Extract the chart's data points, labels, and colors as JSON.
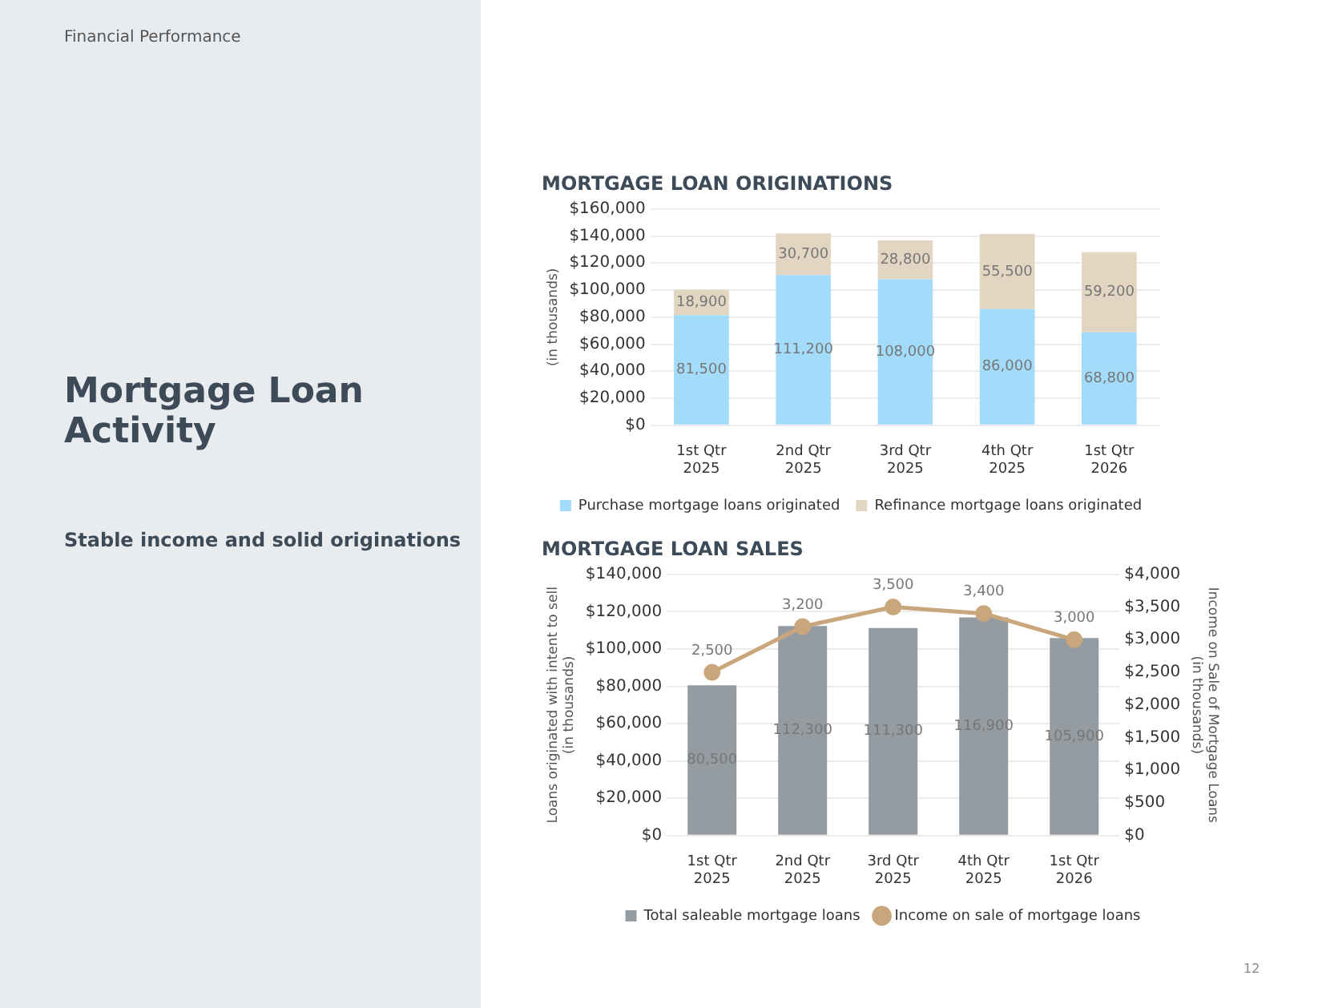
{
  "chart_data": [
    {
      "type": "bar",
      "title": "MORTGAGE LOAN ORIGINATIONS",
      "ylabel": "(in thousands)",
      "annotations": [
        "Financial Performance",
        "Mortgage Loan Activity",
        "Stable income and solid originations"
      ],
      "categories": [
        "1st Qtr\n2025",
        "2nd Qtr\n2025",
        "3rd Qtr\n2025",
        "4th Qtr\n2025",
        "1st Qtr\n2026"
      ],
      "series": [
        {
          "name": "Purchase mortgage loans originated",
          "color": "#a3dcfa",
          "values": [
            81500,
            111200,
            108000,
            86000,
            68800
          ],
          "value_labels": [
            "81,500",
            "111,200",
            "108,000",
            "86,000",
            "68,800"
          ]
        },
        {
          "name": "Refinance mortgage loans originated",
          "color": "#e2d5c2",
          "values": [
            18900,
            30700,
            28800,
            55500,
            59200
          ],
          "value_labels": [
            "18,900",
            "30,700",
            "28,800",
            "55,500",
            "59,200"
          ]
        }
      ],
      "stacked": true,
      "legend": "bottom",
      "grid": "y",
      "ylim": [
        0,
        160000
      ],
      "yticks": [
        {
          "value": 0,
          "label": "$0"
        },
        {
          "value": 20000,
          "label": "$20,000"
        },
        {
          "value": 40000,
          "label": "$40,000"
        },
        {
          "value": 60000,
          "label": "$60,000"
        },
        {
          "value": 80000,
          "label": "$80,000"
        },
        {
          "value": 100000,
          "label": "$100,000"
        },
        {
          "value": 120000,
          "label": "$120,000"
        },
        {
          "value": 140000,
          "label": "$140,000"
        },
        {
          "value": 160000,
          "label": "$160,000"
        }
      ]
    },
    {
      "type": "bar",
      "title": "MORTGAGE LOAN SALES",
      "ylabel": "Loans originated with intent to sell\n(in thousands)",
      "y2label": "Income on Sale of Mortgage Loans\n(in thousands)",
      "annotations": [
        "12"
      ],
      "categories": [
        "1st Qtr\n2025",
        "2nd Qtr\n2025",
        "3rd Qtr\n2025",
        "4th Qtr\n2025",
        "1st Qtr\n2026"
      ],
      "series": [
        {
          "name": "Total saleable mortgage loans",
          "color": "#959ca1",
          "values": [
            80500,
            112300,
            111300,
            116900,
            105900
          ],
          "value_labels": [
            "80,500",
            "112,300",
            "111,300",
            "116,900",
            "105,900"
          ]
        },
        {
          "name": "Income on sale of mortgage loans",
          "type": "line",
          "axis": "y2",
          "color": "#c9a67c",
          "values": [
            2500,
            3200,
            3500,
            3400,
            3000
          ],
          "value_labels": [
            "2,500",
            "3,200",
            "3,500",
            "3,400",
            "3,000"
          ]
        }
      ],
      "legend": "bottom",
      "grid": "y",
      "marker": "circle",
      "ylim": [
        0,
        140000
      ],
      "yticks": [
        {
          "value": 0,
          "label": "$0"
        },
        {
          "value": 20000,
          "label": "$20,000"
        },
        {
          "value": 40000,
          "label": "$40,000"
        },
        {
          "value": 60000,
          "label": "$60,000"
        },
        {
          "value": 80000,
          "label": "$80,000"
        },
        {
          "value": 100000,
          "label": "$100,000"
        },
        {
          "value": 120000,
          "label": "$120,000"
        },
        {
          "value": 140000,
          "label": "$140,000"
        }
      ],
      "y2lim": [
        0,
        4000
      ],
      "y2ticks": [
        {
          "value": 0,
          "label": "$0"
        },
        {
          "value": 500,
          "label": "$500"
        },
        {
          "value": 1000,
          "label": "$1,000"
        },
        {
          "value": 1500,
          "label": "$1,500"
        },
        {
          "value": 2000,
          "label": "$2,000"
        },
        {
          "value": 2500,
          "label": "$2,500"
        },
        {
          "value": 3000,
          "label": "$3,000"
        },
        {
          "value": 3500,
          "label": "$3,500"
        },
        {
          "value": 4000,
          "label": "$4,000"
        }
      ]
    }
  ]
}
